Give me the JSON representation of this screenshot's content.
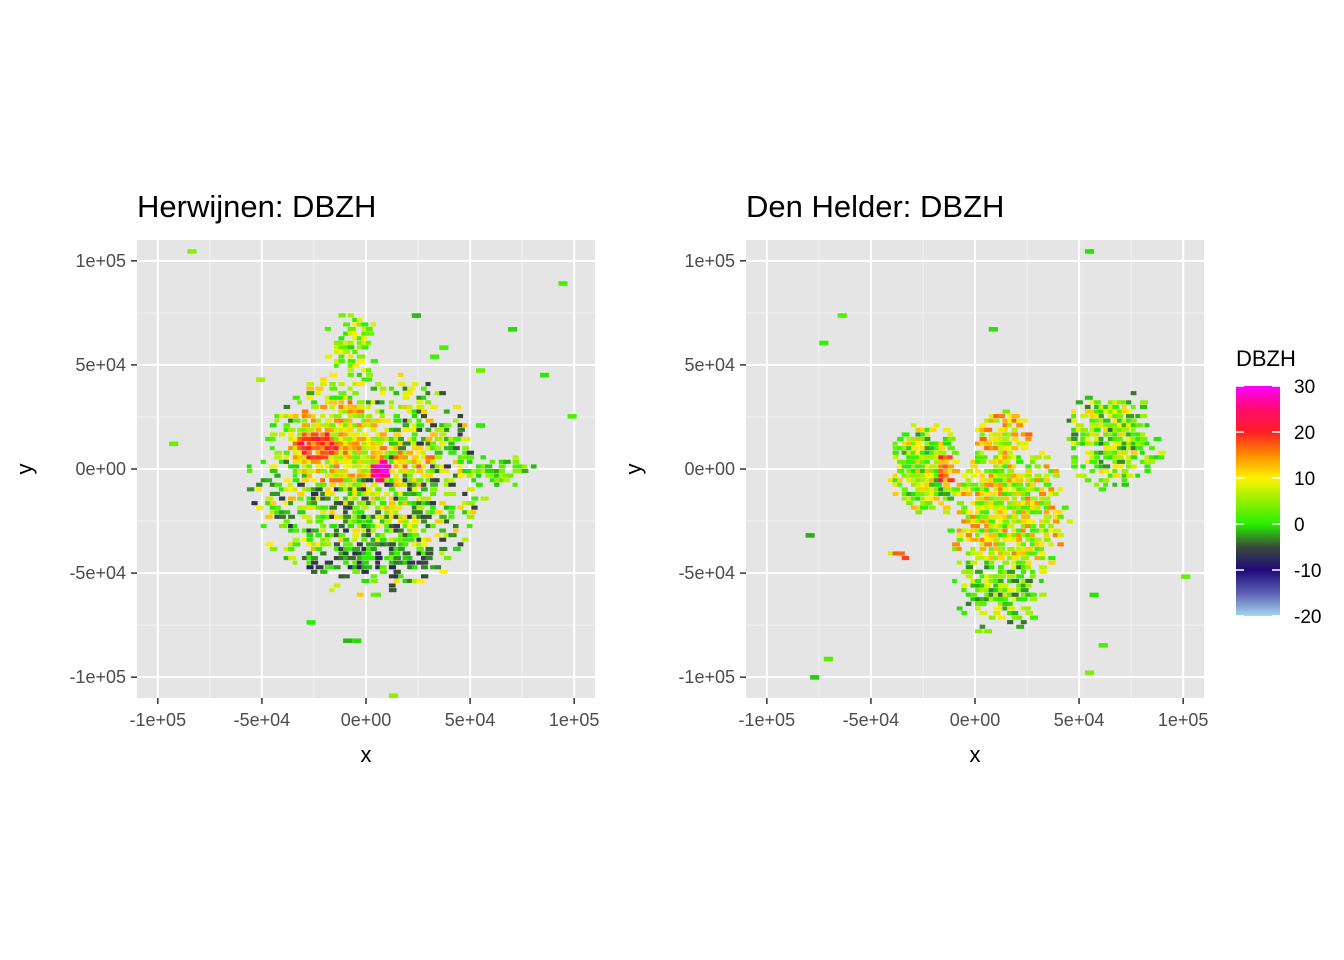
{
  "chart_data": [
    {
      "type": "heatmap",
      "title": "Herwijnen: DBZH",
      "xlabel": "x",
      "ylabel": "y",
      "xlim": [
        -110000,
        110000
      ],
      "ylim": [
        -110000,
        110000
      ],
      "xticks": [
        -100000,
        -50000,
        0,
        50000,
        100000
      ],
      "xtick_labels": [
        "-1e+05",
        "-5e+04",
        "0e+00",
        "5e+04",
        "1e+05"
      ],
      "yticks": [
        -100000,
        -50000,
        0,
        50000,
        100000
      ],
      "ytick_labels": [
        "-1e+05",
        "-5e+04",
        "0e+00",
        "5e+04",
        "1e+05"
      ],
      "grid": true,
      "field": {
        "blobs": [
          {
            "x": 0,
            "y": -5000,
            "rx": 58000,
            "ry": 55000,
            "value": 3,
            "spread": 10,
            "density": 0.6
          },
          {
            "x": -10000,
            "y": 10000,
            "rx": 35000,
            "ry": 30000,
            "value": 10,
            "spread": 7,
            "density": 0.8
          },
          {
            "x": -20000,
            "y": 12000,
            "rx": 20000,
            "ry": 14000,
            "value": 18,
            "spread": 5,
            "density": 0.85
          },
          {
            "x": 5000,
            "y": 0,
            "rx": 9000,
            "ry": 8000,
            "value": 27,
            "spread": 4,
            "density": 0.9
          },
          {
            "x": 20000,
            "y": 5000,
            "rx": 18000,
            "ry": 12000,
            "value": 12,
            "spread": 6,
            "density": 0.7
          },
          {
            "x": -8000,
            "y": 60000,
            "rx": 14000,
            "ry": 16000,
            "value": 5,
            "spread": 6,
            "density": 0.45
          },
          {
            "x": 60000,
            "y": 0,
            "rx": 22000,
            "ry": 8000,
            "value": 2,
            "spread": 5,
            "density": 0.5
          },
          {
            "x": 0,
            "y": -40000,
            "rx": 40000,
            "ry": 15000,
            "value": -2,
            "spread": 6,
            "density": 0.5
          }
        ]
      }
    },
    {
      "type": "heatmap",
      "title": "Den Helder: DBZH",
      "xlabel": "x",
      "ylabel": "y",
      "xlim": [
        -110000,
        110000
      ],
      "ylim": [
        -110000,
        110000
      ],
      "xticks": [
        -100000,
        -50000,
        0,
        50000,
        100000
      ],
      "xtick_labels": [
        "-1e+05",
        "-5e+04",
        "0e+00",
        "5e+04",
        "1e+05"
      ],
      "yticks": [
        -100000,
        -50000,
        0,
        50000,
        100000
      ],
      "ytick_labels": [
        "-1e+05",
        "-5e+04",
        "0e+00",
        "5e+04",
        "1e+05"
      ],
      "grid": true,
      "field": {
        "blobs": [
          {
            "x": -25000,
            "y": 0,
            "rx": 18000,
            "ry": 24000,
            "value": 5,
            "spread": 8,
            "density": 0.95
          },
          {
            "x": -17000,
            "y": 0,
            "rx": 8000,
            "ry": 14000,
            "value": 16,
            "spread": 6,
            "density": 0.95
          },
          {
            "x": 15000,
            "y": -20000,
            "rx": 30000,
            "ry": 35000,
            "value": 8,
            "spread": 8,
            "density": 0.8
          },
          {
            "x": 10000,
            "y": -55000,
            "rx": 22000,
            "ry": 25000,
            "value": 3,
            "spread": 7,
            "density": 0.6
          },
          {
            "x": 12000,
            "y": 18000,
            "rx": 14000,
            "ry": 12000,
            "value": 10,
            "spread": 7,
            "density": 0.7
          },
          {
            "x": 65000,
            "y": 15000,
            "rx": 25000,
            "ry": 25000,
            "value": 4,
            "spread": 8,
            "density": 0.65
          },
          {
            "x": -38000,
            "y": -40000,
            "rx": 4000,
            "ry": 3000,
            "value": 15,
            "spread": 8,
            "density": 0.8
          }
        ]
      }
    }
  ],
  "legend": {
    "title": "DBZH",
    "ticks": [
      30,
      20,
      10,
      0,
      -10,
      -20
    ],
    "range": [
      -20,
      30
    ],
    "colors": [
      {
        "stop": -20,
        "color": "#a6d7ee"
      },
      {
        "stop": -15,
        "color": "#5b5fb3"
      },
      {
        "stop": -10,
        "color": "#1e0a7a"
      },
      {
        "stop": -5,
        "color": "#3b4a3a"
      },
      {
        "stop": 0,
        "color": "#27f000"
      },
      {
        "stop": 10,
        "color": "#fff200"
      },
      {
        "stop": 15,
        "color": "#ff8c00"
      },
      {
        "stop": 20,
        "color": "#ff1e23"
      },
      {
        "stop": 25,
        "color": "#ff0a6e"
      },
      {
        "stop": 30,
        "color": "#ff00ff"
      }
    ]
  },
  "theme": {
    "panel_bg": "#e5e5e5",
    "grid_major": "#ffffff",
    "text": "#000000",
    "tick_text": "#4d4d4d"
  }
}
